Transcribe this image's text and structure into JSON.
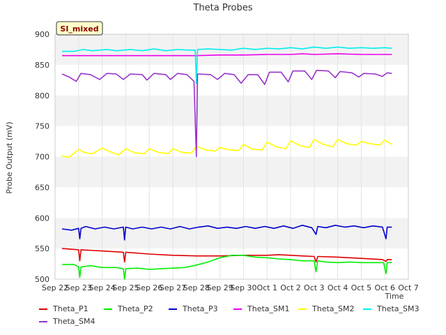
{
  "chart_data": {
    "type": "line",
    "title": "Theta Probes",
    "xlabel": "Time",
    "ylabel": "Probe Output (mV)",
    "ylim": [
      500,
      900
    ],
    "xlim": [
      0,
      15
    ],
    "yticks": [
      500,
      550,
      600,
      650,
      700,
      750,
      800,
      850,
      900
    ],
    "xtick_labels": [
      "Sep 22",
      "Sep 23",
      "Sep 24",
      "Sep 25",
      "Sep 26",
      "Sep 27",
      "Sep 28",
      "Sep 29",
      "Sep 30",
      "Oct 1",
      "Oct 2",
      "Oct 3",
      "Oct 4",
      "Oct 5",
      "Oct 6",
      "Oct 7"
    ],
    "annotation": "SI_mixed",
    "grid": true,
    "x_unit": "days since Sep 22",
    "series": [
      {
        "name": "Theta_P1",
        "color": "#dd0000",
        "points": [
          [
            0.3,
            550
          ],
          [
            1,
            548
          ],
          [
            1.05,
            530
          ],
          [
            1.1,
            548
          ],
          [
            2,
            546
          ],
          [
            2.9,
            544
          ],
          [
            2.95,
            528
          ],
          [
            3,
            544
          ],
          [
            4,
            541
          ],
          [
            5,
            539
          ],
          [
            6,
            538
          ],
          [
            7,
            538
          ],
          [
            8,
            539
          ],
          [
            9,
            539
          ],
          [
            9.5,
            540
          ],
          [
            10,
            539
          ],
          [
            10.5,
            538
          ],
          [
            11,
            537
          ],
          [
            11.08,
            528
          ],
          [
            11.15,
            537
          ],
          [
            12,
            536
          ],
          [
            13,
            534
          ],
          [
            13.9,
            532
          ],
          [
            14.05,
            529
          ],
          [
            14.1,
            532
          ],
          [
            14.3,
            532
          ]
        ]
      },
      {
        "name": "Theta_P2",
        "color": "#00ee00",
        "points": [
          [
            0.3,
            524
          ],
          [
            0.8,
            524
          ],
          [
            1,
            520
          ],
          [
            1.05,
            503
          ],
          [
            1.1,
            520
          ],
          [
            1.5,
            522
          ],
          [
            2,
            519
          ],
          [
            2.6,
            519
          ],
          [
            2.9,
            517
          ],
          [
            2.95,
            500
          ],
          [
            3,
            517
          ],
          [
            3.5,
            518
          ],
          [
            4,
            516
          ],
          [
            4.5,
            517
          ],
          [
            5,
            518
          ],
          [
            5.5,
            519
          ],
          [
            6,
            523
          ],
          [
            6.5,
            528
          ],
          [
            7,
            535
          ],
          [
            7.5,
            539
          ],
          [
            8,
            539
          ],
          [
            8.5,
            536
          ],
          [
            9,
            535
          ],
          [
            9.5,
            533
          ],
          [
            10,
            532
          ],
          [
            10.5,
            530
          ],
          [
            11,
            530
          ],
          [
            11.08,
            512
          ],
          [
            11.15,
            530
          ],
          [
            11.5,
            528
          ],
          [
            12,
            527
          ],
          [
            12.5,
            528
          ],
          [
            13,
            527
          ],
          [
            13.5,
            527
          ],
          [
            13.95,
            527
          ],
          [
            14.05,
            509
          ],
          [
            14.1,
            527
          ],
          [
            14.3,
            527
          ]
        ]
      },
      {
        "name": "Theta_P3",
        "color": "#0000cc",
        "points": [
          [
            0.3,
            582
          ],
          [
            0.7,
            580
          ],
          [
            1,
            583
          ],
          [
            1.05,
            566
          ],
          [
            1.1,
            583
          ],
          [
            1.3,
            586
          ],
          [
            1.7,
            582
          ],
          [
            2.1,
            585
          ],
          [
            2.5,
            582
          ],
          [
            2.9,
            585
          ],
          [
            2.95,
            564
          ],
          [
            3,
            585
          ],
          [
            3.3,
            582
          ],
          [
            3.7,
            585
          ],
          [
            4.1,
            582
          ],
          [
            4.5,
            585
          ],
          [
            4.9,
            582
          ],
          [
            5.3,
            586
          ],
          [
            5.7,
            582
          ],
          [
            6.1,
            585
          ],
          [
            6.5,
            587
          ],
          [
            6.9,
            583
          ],
          [
            7.3,
            585
          ],
          [
            7.7,
            583
          ],
          [
            8.1,
            586
          ],
          [
            8.5,
            583
          ],
          [
            8.9,
            586
          ],
          [
            9.3,
            583
          ],
          [
            9.7,
            587
          ],
          [
            10.1,
            583
          ],
          [
            10.5,
            588
          ],
          [
            10.9,
            584
          ],
          [
            11.08,
            573
          ],
          [
            11.15,
            586
          ],
          [
            11.5,
            584
          ],
          [
            11.9,
            588
          ],
          [
            12.3,
            585
          ],
          [
            12.7,
            587
          ],
          [
            13.1,
            584
          ],
          [
            13.5,
            587
          ],
          [
            13.9,
            585
          ],
          [
            14.05,
            566
          ],
          [
            14.1,
            585
          ],
          [
            14.3,
            585
          ]
        ]
      },
      {
        "name": "Theta_SM1",
        "color": "#ee00ee",
        "points": [
          [
            0.3,
            865
          ],
          [
            2,
            865
          ],
          [
            4,
            865
          ],
          [
            6,
            865
          ],
          [
            7,
            866
          ],
          [
            8,
            866
          ],
          [
            9,
            867
          ],
          [
            10,
            867
          ],
          [
            10.5,
            868
          ],
          [
            11,
            867
          ],
          [
            12,
            868
          ],
          [
            13,
            867
          ],
          [
            14,
            867
          ],
          [
            14.3,
            867
          ]
        ]
      },
      {
        "name": "Theta_SM2",
        "color": "#ffff00",
        "points": [
          [
            0.3,
            701
          ],
          [
            0.6,
            699
          ],
          [
            1,
            712
          ],
          [
            1.3,
            706
          ],
          [
            1.6,
            705
          ],
          [
            2,
            714
          ],
          [
            2.4,
            707
          ],
          [
            2.7,
            703
          ],
          [
            3,
            713
          ],
          [
            3.4,
            706
          ],
          [
            3.8,
            705
          ],
          [
            4,
            713
          ],
          [
            4.4,
            707
          ],
          [
            4.8,
            705
          ],
          [
            5,
            713
          ],
          [
            5.4,
            707
          ],
          [
            5.8,
            706
          ],
          [
            6,
            717
          ],
          [
            6.4,
            711
          ],
          [
            6.8,
            709
          ],
          [
            7,
            715
          ],
          [
            7.4,
            711
          ],
          [
            7.8,
            710
          ],
          [
            8,
            720
          ],
          [
            8.4,
            712
          ],
          [
            8.8,
            711
          ],
          [
            9,
            724
          ],
          [
            9.4,
            716
          ],
          [
            9.8,
            713
          ],
          [
            10,
            726
          ],
          [
            10.4,
            718
          ],
          [
            10.8,
            715
          ],
          [
            11,
            728
          ],
          [
            11.4,
            720
          ],
          [
            11.8,
            716
          ],
          [
            12,
            728
          ],
          [
            12.4,
            721
          ],
          [
            12.8,
            719
          ],
          [
            13,
            725
          ],
          [
            13.4,
            721
          ],
          [
            13.8,
            719
          ],
          [
            14,
            727
          ],
          [
            14.3,
            720
          ]
        ]
      },
      {
        "name": "Theta_SM3",
        "color": "#00eeee",
        "points": [
          [
            0.3,
            872
          ],
          [
            0.8,
            872
          ],
          [
            1.2,
            875
          ],
          [
            1.6,
            873
          ],
          [
            2.2,
            875
          ],
          [
            2.6,
            873
          ],
          [
            3.2,
            875
          ],
          [
            3.7,
            873
          ],
          [
            4.2,
            876
          ],
          [
            4.7,
            873
          ],
          [
            5.2,
            875
          ],
          [
            5.7,
            874
          ],
          [
            5.95,
            874
          ],
          [
            6,
            820
          ],
          [
            6.05,
            875
          ],
          [
            6.5,
            876
          ],
          [
            7,
            875
          ],
          [
            7.5,
            874
          ],
          [
            8,
            877
          ],
          [
            8.5,
            875
          ],
          [
            9,
            877
          ],
          [
            9.5,
            876
          ],
          [
            10,
            878
          ],
          [
            10.5,
            876
          ],
          [
            11,
            879
          ],
          [
            11.5,
            877
          ],
          [
            12,
            879
          ],
          [
            12.5,
            877
          ],
          [
            13,
            878
          ],
          [
            13.5,
            877
          ],
          [
            14,
            878
          ],
          [
            14.3,
            877
          ]
        ]
      },
      {
        "name": "Theta_SM4",
        "color": "#9933cc",
        "points": [
          [
            0.3,
            835
          ],
          [
            0.6,
            830
          ],
          [
            0.9,
            823
          ],
          [
            1.1,
            836
          ],
          [
            1.5,
            834
          ],
          [
            1.9,
            826
          ],
          [
            2.2,
            836
          ],
          [
            2.6,
            835
          ],
          [
            2.9,
            826
          ],
          [
            3.2,
            835
          ],
          [
            3.7,
            834
          ],
          [
            3.9,
            825
          ],
          [
            4.2,
            836
          ],
          [
            4.7,
            834
          ],
          [
            4.9,
            826
          ],
          [
            5.2,
            836
          ],
          [
            5.6,
            834
          ],
          [
            5.9,
            823
          ],
          [
            6.0,
            700
          ],
          [
            6.05,
            835
          ],
          [
            6.6,
            834
          ],
          [
            6.9,
            826
          ],
          [
            7.2,
            836
          ],
          [
            7.6,
            834
          ],
          [
            7.9,
            820
          ],
          [
            8.2,
            834
          ],
          [
            8.6,
            834
          ],
          [
            8.9,
            818
          ],
          [
            9.1,
            838
          ],
          [
            9.6,
            838
          ],
          [
            9.9,
            822
          ],
          [
            10.1,
            840
          ],
          [
            10.6,
            840
          ],
          [
            10.9,
            826
          ],
          [
            11.1,
            841
          ],
          [
            11.6,
            840
          ],
          [
            11.9,
            829
          ],
          [
            12.1,
            839
          ],
          [
            12.6,
            837
          ],
          [
            12.9,
            830
          ],
          [
            13.1,
            836
          ],
          [
            13.6,
            835
          ],
          [
            13.9,
            831
          ],
          [
            14.1,
            837
          ],
          [
            14.3,
            836
          ]
        ]
      }
    ]
  }
}
